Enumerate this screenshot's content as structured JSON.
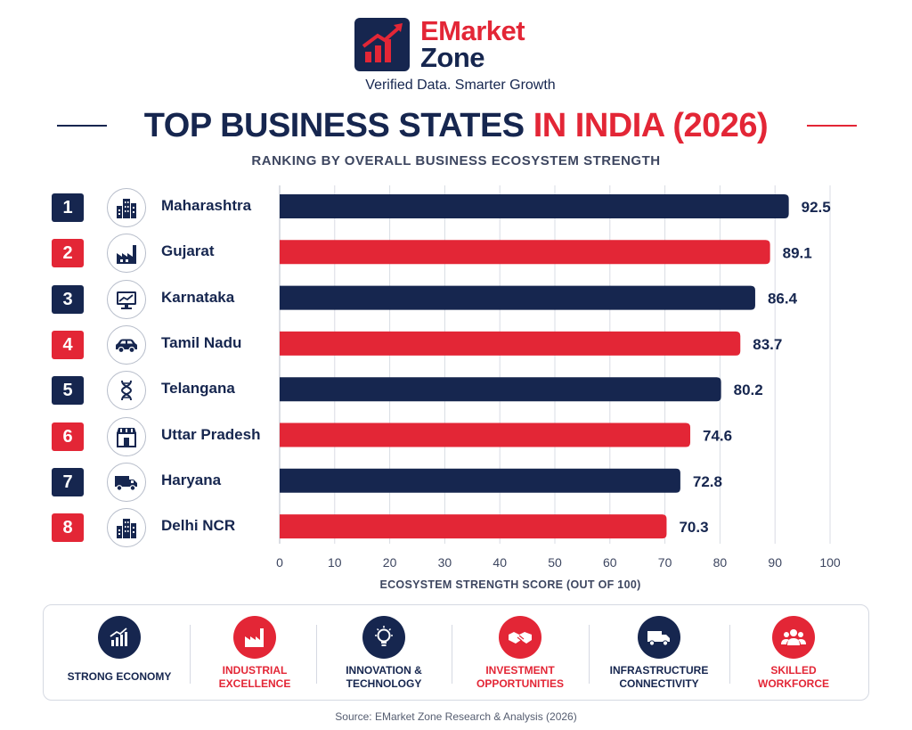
{
  "brand": {
    "name_line1": "EMarket",
    "name_line2": "Zone",
    "tagline": "Verified Data. Smarter Growth"
  },
  "title_part1": "TOP BUSINESS STATES ",
  "title_part2": "IN INDIA (2026)",
  "subtitle": "RANKING BY OVERALL BUSINESS ECOSYSTEM STRENGTH",
  "colors": {
    "navy": "#16264f",
    "red": "#e32636",
    "gridline": "#d9dce4"
  },
  "rows": [
    {
      "rank": "1",
      "state": "Maharashtra",
      "icon": "city-buildings-icon",
      "color": "navy"
    },
    {
      "rank": "2",
      "state": "Gujarat",
      "icon": "factory-icon",
      "color": "red"
    },
    {
      "rank": "3",
      "state": "Karnataka",
      "icon": "computer-monitor-icon",
      "color": "navy"
    },
    {
      "rank": "4",
      "state": "Tamil Nadu",
      "icon": "car-icon",
      "color": "red"
    },
    {
      "rank": "5",
      "state": "Telangana",
      "icon": "dna-icon",
      "color": "navy"
    },
    {
      "rank": "6",
      "state": "Uttar Pradesh",
      "icon": "storefront-icon",
      "color": "red"
    },
    {
      "rank": "7",
      "state": "Haryana",
      "icon": "truck-icon",
      "color": "navy"
    },
    {
      "rank": "8",
      "state": "Delhi NCR",
      "icon": "city-buildings-icon",
      "color": "red"
    }
  ],
  "chart_data": {
    "type": "bar",
    "orientation": "horizontal",
    "categories": [
      "Maharashtra",
      "Gujarat",
      "Karnataka",
      "Tamil Nadu",
      "Telangana",
      "Uttar Pradesh",
      "Haryana",
      "Delhi NCR"
    ],
    "values": [
      92.5,
      89.1,
      86.4,
      83.7,
      80.2,
      74.6,
      72.8,
      70.3
    ],
    "value_labels": [
      "92.5",
      "89.1",
      "86.4",
      "83.7",
      "80.2",
      "74.6",
      "72.8",
      "70.3"
    ],
    "bar_colors": [
      "#16264f",
      "#e32636",
      "#16264f",
      "#e32636",
      "#16264f",
      "#e32636",
      "#16264f",
      "#e32636"
    ],
    "xlabel": "ECOSYSTEM STRENGTH SCORE (OUT OF 100)",
    "xlim": [
      0,
      100
    ],
    "xticks": [
      0,
      10,
      20,
      30,
      40,
      50,
      60,
      70,
      80,
      90,
      100
    ],
    "grid": "vertical"
  },
  "features": [
    {
      "label_line1": "STRONG ECONOMY",
      "label_line2": "",
      "icon": "growth-chart-icon",
      "color": "navy"
    },
    {
      "label_line1": "INDUSTRIAL",
      "label_line2": "EXCELLENCE",
      "icon": "factory-icon",
      "color": "red"
    },
    {
      "label_line1": "INNOVATION &",
      "label_line2": "TECHNOLOGY",
      "icon": "lightbulb-icon",
      "color": "navy"
    },
    {
      "label_line1": "INVESTMENT",
      "label_line2": "OPPORTUNITIES",
      "icon": "handshake-icon",
      "color": "red"
    },
    {
      "label_line1": "INFRASTRUCTURE",
      "label_line2": "CONNECTIVITY",
      "icon": "truck-icon",
      "color": "navy"
    },
    {
      "label_line1": "SKILLED",
      "label_line2": "WORKFORCE",
      "icon": "people-icon",
      "color": "red"
    }
  ],
  "source": "Source: EMarket Zone Research & Analysis (2026)"
}
